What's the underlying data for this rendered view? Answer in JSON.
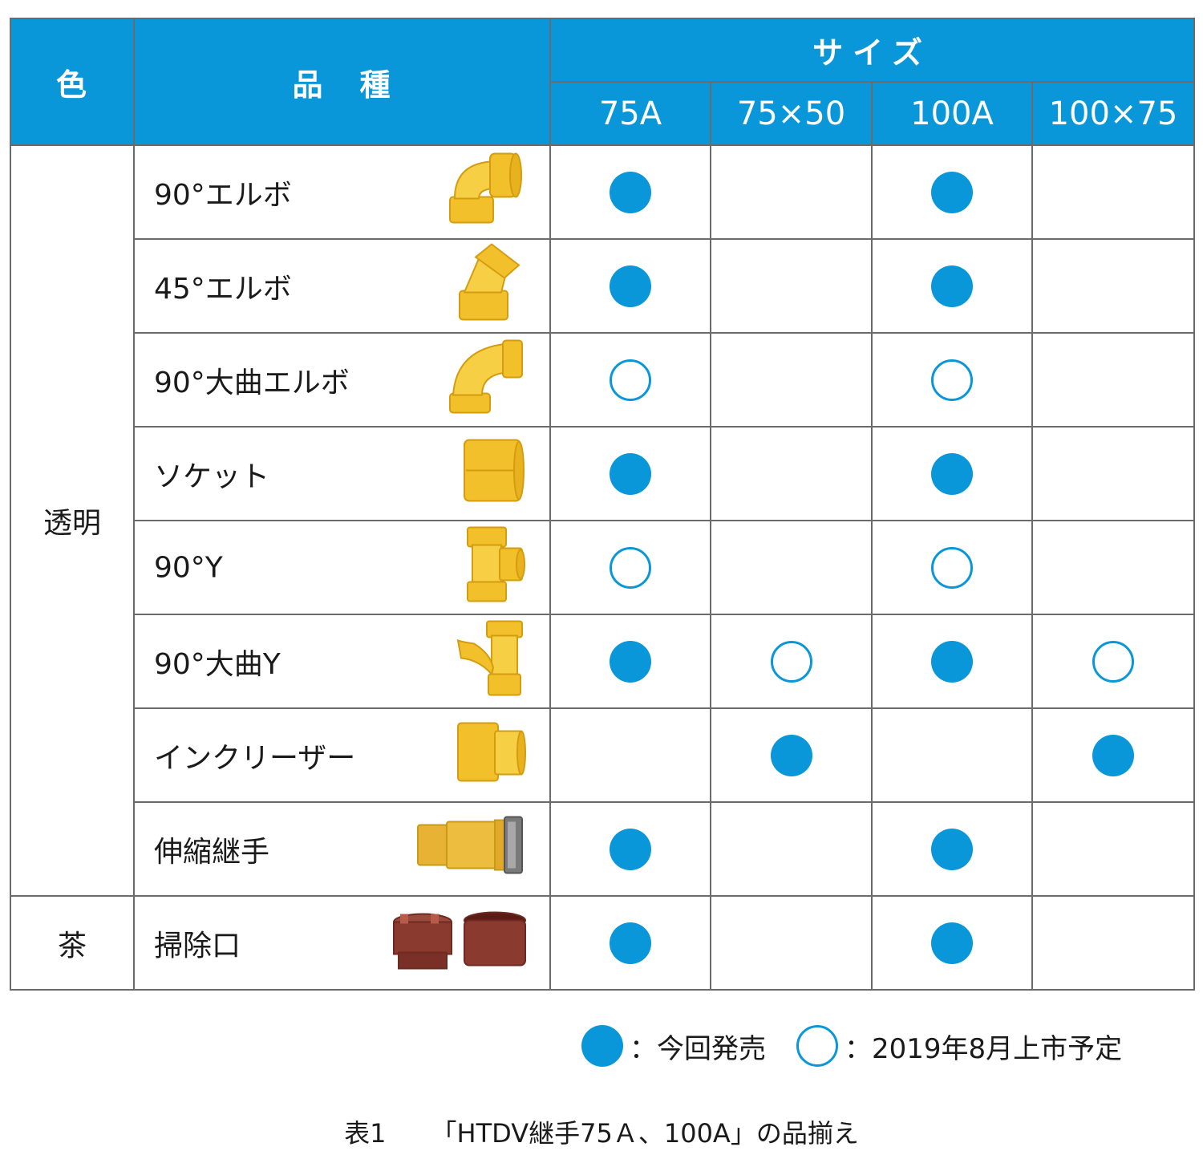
{
  "header": {
    "color": "色",
    "type": [
      "品",
      "種"
    ],
    "size": "サイズ",
    "sizes": [
      "75A",
      "75×50",
      "100A",
      "100×75"
    ]
  },
  "groups": {
    "clear": "透明",
    "brown": "茶"
  },
  "rows": [
    {
      "name": "90°エルボ",
      "icon": "elbow-90-fitting-icon",
      "marks": [
        "filled",
        "",
        "filled",
        ""
      ]
    },
    {
      "name": "45°エルボ",
      "icon": "elbow-45-fitting-icon",
      "marks": [
        "filled",
        "",
        "filled",
        ""
      ]
    },
    {
      "name": "90°大曲エルボ",
      "icon": "long-sweep-elbow-fitting-icon",
      "marks": [
        "open",
        "",
        "open",
        ""
      ]
    },
    {
      "name": "ソケット",
      "icon": "socket-fitting-icon",
      "marks": [
        "filled",
        "",
        "filled",
        ""
      ]
    },
    {
      "name": "90°Y",
      "icon": "wye-90-fitting-icon",
      "marks": [
        "open",
        "",
        "open",
        ""
      ]
    },
    {
      "name": "90°大曲Y",
      "icon": "long-sweep-wye-fitting-icon",
      "marks": [
        "filled",
        "open",
        "filled",
        "open"
      ]
    },
    {
      "name": "インクリーザー",
      "icon": "increaser-fitting-icon",
      "marks": [
        "",
        "filled",
        "",
        "filled"
      ]
    },
    {
      "name": "伸縮継手",
      "icon": "expansion-joint-fitting-icon",
      "marks": [
        "filled",
        "",
        "filled",
        ""
      ]
    },
    {
      "name": "掃除口",
      "icon": "cleanout-fitting-icon",
      "marks": [
        "filled",
        "",
        "filled",
        ""
      ]
    }
  ],
  "legend": {
    "filled": "：今回発売",
    "open": "：2019年8月上市予定"
  },
  "caption": {
    "label": "表1",
    "text": "「HTDV継手75Ａ、100A」の品揃え"
  },
  "colors": {
    "accent": "#0a97d9",
    "fitting_clear": "#f2c02a",
    "fitting_brown": "#8a3a2e"
  }
}
